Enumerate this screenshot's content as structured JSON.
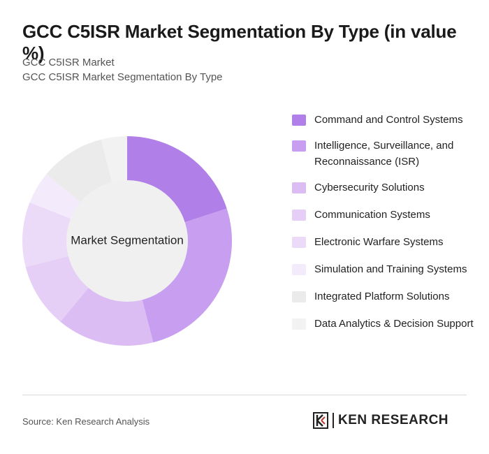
{
  "header": {
    "title": "GCC C5ISR Market Segmentation By Type (in value %)",
    "subtitle_1": "GCC C5ISR Market",
    "subtitle_2": "GCC C5ISR Market Segmentation By Type"
  },
  "chart_data": {
    "type": "pie",
    "center_label": "Market Segmentation",
    "categories": [
      "Command and Control Systems",
      "Intelligence, Surveillance, and Reconnaissance (ISR)",
      "Cybersecurity Solutions",
      "Communication Systems",
      "Electronic Warfare Systems",
      "Simulation and Training Systems",
      "Integrated Platform Solutions",
      "Data Analytics & Decision Support"
    ],
    "values": [
      20,
      26,
      15,
      10,
      10,
      5,
      10,
      4
    ],
    "colors": [
      "#b07fe8",
      "#c79ef0",
      "#dbbdf4",
      "#e5cff6",
      "#ebdbf8",
      "#f3eafb",
      "#ebebeb",
      "#f2f2f2"
    ],
    "center_color": "#f0f0f0",
    "legend_position": "right"
  },
  "footer": {
    "source": "Source: Ken Research Analysis",
    "logo_text": "KEN RESEARCH"
  }
}
